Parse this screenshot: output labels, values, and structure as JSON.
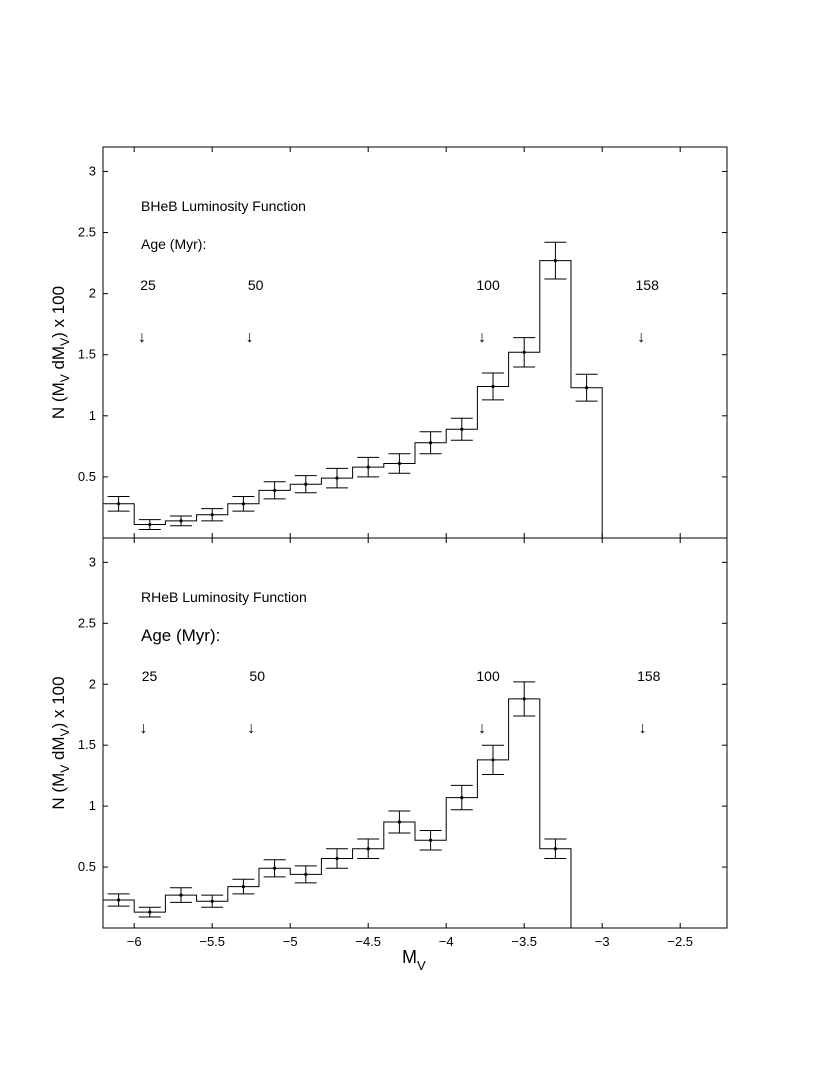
{
  "chart_data": [
    {
      "type": "step",
      "title": "BHeB Luminosity Function",
      "annotation_label": "Age (Myr):",
      "ages": [
        {
          "label": "25",
          "x": -5.95,
          "arrow": "↓"
        },
        {
          "label": "50",
          "x": -5.26,
          "arrow": "↓"
        },
        {
          "label": "100",
          "x": -3.77,
          "arrow": "↓"
        },
        {
          "label": "158",
          "x": -2.75,
          "arrow": "↓"
        }
      ],
      "ylabel_parts": [
        "N (M",
        "V",
        " dM",
        "V",
        ") x 100"
      ],
      "xlim": [
        -6.2,
        -2.2
      ],
      "ylim": [
        0,
        3.2
      ],
      "yticks": [
        0.5,
        1,
        1.5,
        2,
        2.5,
        3
      ],
      "yticklabels": [
        "0.5",
        "1",
        "1.5",
        "2",
        "2.5",
        "3"
      ],
      "bin_edges": [
        -6.2,
        -6.0,
        -5.8,
        -5.6,
        -5.4,
        -5.2,
        -5.0,
        -4.8,
        -4.6,
        -4.4,
        -4.2,
        -4.0,
        -3.8,
        -3.6,
        -3.4,
        -3.2,
        -3.0
      ],
      "x": [
        -6.1,
        -5.9,
        -5.7,
        -5.5,
        -5.3,
        -5.1,
        -4.9,
        -4.7,
        -4.5,
        -4.3,
        -4.1,
        -3.9,
        -3.7,
        -3.5,
        -3.3,
        -3.1
      ],
      "values": [
        0.28,
        0.11,
        0.14,
        0.19,
        0.28,
        0.39,
        0.44,
        0.49,
        0.58,
        0.61,
        0.78,
        0.89,
        1.24,
        1.52,
        2.27,
        1.23
      ],
      "errors": [
        0.06,
        0.04,
        0.04,
        0.05,
        0.06,
        0.07,
        0.07,
        0.08,
        0.08,
        0.08,
        0.09,
        0.09,
        0.11,
        0.12,
        0.15,
        0.11
      ]
    },
    {
      "type": "step",
      "title": "RHeB Luminosity Function",
      "annotation_label": "Age (Myr):",
      "ages": [
        {
          "label": "25",
          "x": -5.94,
          "arrow": "↓"
        },
        {
          "label": "50",
          "x": -5.25,
          "arrow": "↓"
        },
        {
          "label": "100",
          "x": -3.77,
          "arrow": "↓"
        },
        {
          "label": "158",
          "x": -2.74,
          "arrow": "↓"
        }
      ],
      "ylabel_parts": [
        "N (M",
        "V",
        " dM",
        "V",
        ") x 100"
      ],
      "xlabel_parts": [
        "M",
        "V"
      ],
      "xlim": [
        -6.2,
        -2.2
      ],
      "ylim": [
        0,
        3.2
      ],
      "xticks": [
        -6,
        -5.5,
        -5,
        -4.5,
        -4,
        -3.5,
        -3,
        -2.5
      ],
      "xticklabels": [
        "−6",
        "−5.5",
        "−5",
        "−4.5",
        "−4",
        "−3.5",
        "−3",
        "−2.5"
      ],
      "yticks": [
        0.5,
        1,
        1.5,
        2,
        2.5,
        3
      ],
      "yticklabels": [
        "0.5",
        "1",
        "1.5",
        "2",
        "2.5",
        "3"
      ],
      "bin_edges": [
        -6.2,
        -6.0,
        -5.8,
        -5.6,
        -5.4,
        -5.2,
        -5.0,
        -4.8,
        -4.6,
        -4.4,
        -4.2,
        -4.0,
        -3.8,
        -3.6,
        -3.4,
        -3.2
      ],
      "x": [
        -6.1,
        -5.9,
        -5.7,
        -5.5,
        -5.3,
        -5.1,
        -4.9,
        -4.7,
        -4.5,
        -4.3,
        -4.1,
        -3.9,
        -3.7,
        -3.5,
        -3.3
      ],
      "values": [
        0.23,
        0.13,
        0.27,
        0.22,
        0.34,
        0.49,
        0.44,
        0.57,
        0.65,
        0.87,
        0.72,
        1.07,
        1.38,
        1.88,
        0.65
      ],
      "errors": [
        0.05,
        0.04,
        0.06,
        0.05,
        0.06,
        0.07,
        0.07,
        0.08,
        0.08,
        0.09,
        0.08,
        0.1,
        0.12,
        0.14,
        0.08
      ]
    }
  ]
}
